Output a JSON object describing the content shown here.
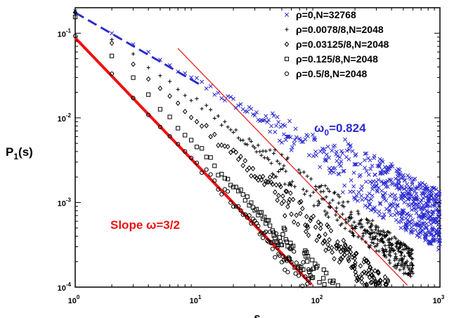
{
  "chart_data": {
    "type": "scatter",
    "xscale": "log",
    "yscale": "log",
    "xlim": [
      1,
      1000
    ],
    "ylim": [
      0.0001,
      0.2
    ],
    "xlabel": "s",
    "ylabel": {
      "base": "P",
      "sub": "1",
      "tail": "(s)"
    },
    "grid": false,
    "legend_position": "top-right",
    "x_ticks": [
      {
        "base": "10",
        "exp": "0",
        "value": 1
      },
      {
        "base": "10",
        "exp": "1",
        "value": 10
      },
      {
        "base": "10",
        "exp": "2",
        "value": 100
      },
      {
        "base": "10",
        "exp": "3",
        "value": 1000
      }
    ],
    "y_ticks": [
      {
        "base": "10",
        "exp": "-4",
        "value": 0.0001
      },
      {
        "base": "10",
        "exp": "-3",
        "value": 0.001
      },
      {
        "base": "10",
        "exp": "-2",
        "value": 0.01
      },
      {
        "base": "10",
        "exp": "-1",
        "value": 0.1
      }
    ],
    "series": [
      {
        "name": "ρ=0,N=32768",
        "marker": "x",
        "color": "#2a2ad0",
        "exponent": 0.824,
        "amplitude": 0.18,
        "s_max": 1000
      },
      {
        "name": "ρ=0.0078/8,N=2048",
        "marker": "plus",
        "color": "#000000",
        "exponent": 1.08,
        "amplitude": 0.18,
        "s_max": 600
      },
      {
        "name": "ρ=0.03125/8,N=2048",
        "marker": "diamond",
        "color": "#000000",
        "exponent": 1.3,
        "amplitude": 0.18,
        "s_max": 380
      },
      {
        "name": "ρ=0.125/8,N=2048",
        "marker": "square",
        "color": "#000000",
        "exponent": 1.55,
        "amplitude": 0.16,
        "s_max": 200
      },
      {
        "name": "ρ=0.5/8,N=2048",
        "marker": "circle",
        "color": "#000000",
        "exponent": 1.5,
        "amplitude": 0.09,
        "s_max": 95
      }
    ],
    "fit_lines": [
      {
        "label": "ω₀=0.824 fit",
        "color": "#2a2ad0",
        "dashed": true,
        "exponent": 0.824,
        "from": [
          1,
          0.175
        ],
        "to": [
          11,
          0.024
        ]
      },
      {
        "label": "slope 3/2 fit",
        "color": "#ee1111",
        "dashed": false,
        "exponent": 1.5,
        "from": [
          1,
          0.088
        ],
        "to": [
          88,
          0.000107
        ]
      },
      {
        "label": "slope 3/2 guide",
        "color": "#ee1111",
        "dashed": false,
        "exponent": 1.5,
        "from": [
          7,
          0.066
        ],
        "to": [
          540,
          0.000105
        ]
      }
    ],
    "annotations": {
      "omega0": {
        "omega": "ω",
        "sub": "0",
        "text": "=0.824",
        "color": "#2a2ad0"
      },
      "slope": {
        "text": "Slope ω=3/2",
        "color": "#ee1111"
      }
    }
  }
}
